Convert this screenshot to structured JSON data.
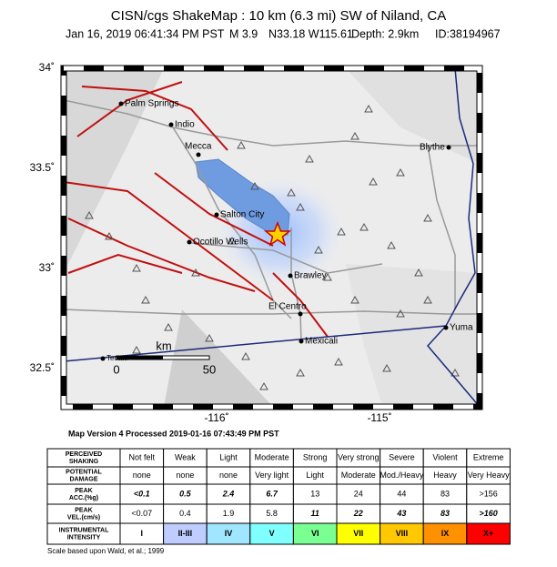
{
  "header": {
    "title": "CISN/cgs ShakeMap : 10 km (6.3 mi) SW of Niland, CA",
    "subtitle": [
      "Jan 16, 2019 06:41:34 PM PST",
      "M 3.9",
      "N33.18 W115.61",
      "Depth: 2.9km",
      "ID:38194967"
    ]
  },
  "map": {
    "lat_ticks": [
      {
        "value": 34,
        "label": "34˚"
      },
      {
        "value": 33.5,
        "label": "33.5˚"
      },
      {
        "value": 33,
        "label": "33˚"
      },
      {
        "value": 32.5,
        "label": "32.5˚"
      }
    ],
    "lon_ticks": [
      {
        "value": -116,
        "label": "-116˚"
      },
      {
        "value": -115,
        "label": "-115˚"
      }
    ],
    "places": [
      "Palm Springs",
      "Indio",
      "Mecca",
      "Blythe",
      "Salton City",
      "Ocotillo Wells",
      "Brawley",
      "El Centro",
      "Mexicali",
      "Yuma",
      "Tecate"
    ],
    "scale": {
      "unit": "km",
      "labels": [
        "0",
        "50"
      ]
    }
  },
  "version": "Map Version 4 Processed 2019-01-16 07:43:49 PM PST",
  "table": {
    "rows": [
      [
        "PERCEIVED SHAKING",
        "Not felt",
        "Weak",
        "Light",
        "Moderate",
        "Strong",
        "Very strong",
        "Severe",
        "Violent",
        "Extreme"
      ],
      [
        "POTENTIAL DAMAGE",
        "none",
        "none",
        "none",
        "Very light",
        "Light",
        "Moderate",
        "Mod./Heavy",
        "Heavy",
        "Very Heavy"
      ],
      [
        "PEAK ACC.(%g)",
        "<0.1",
        "0.5",
        "2.4",
        "6.7",
        "13",
        "24",
        "44",
        "83",
        ">156"
      ],
      [
        "PEAK VEL.(cm/s)",
        "<0.07",
        "0.4",
        "1.9",
        "5.8",
        "11",
        "22",
        "43",
        "83",
        ">160"
      ],
      [
        "INSTRUMENTAL INTENSITY",
        "I",
        "II-III",
        "IV",
        "V",
        "VI",
        "VII",
        "VIII",
        "IX",
        "X+"
      ]
    ]
  },
  "footnote": "Scale based upon Wald, et al.; 1999"
}
